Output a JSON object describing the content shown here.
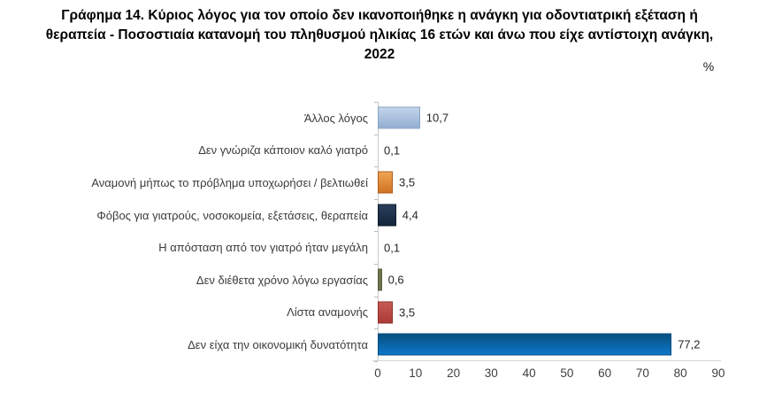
{
  "title_lines": [
    "Γράφημα 14. Κύριος λόγος για τον οποίο δεν ικανοποιήθηκε η ανάγκη για οδοντιατρική εξέταση ή",
    "θεραπεία - Ποσοστιαία κατανομή του πληθυσμού ηλικίας 16 ετών και άνω που είχε αντίστοιχη ανάγκη,",
    "2022"
  ],
  "unit_label": "%",
  "chart_data": {
    "type": "bar",
    "orientation": "horizontal",
    "title": "Γράφημα 14. Κύριος λόγος για τον οποίο δεν ικανοποιήθηκε η ανάγκη για οδοντιατρική εξέταση ή θεραπεία - Ποσοστιαία κατανομή του πληθυσμού ηλικίας 16 ετών και άνω που είχε αντίστοιχη ανάγκη, 2022",
    "unit": "%",
    "categories": [
      "Άλλος λόγος",
      "Δεν γνώριζα κάποιον καλό γιατρό",
      "Αναμονή μήπως το πρόβλημα υποχωρήσει / βελτιωθεί",
      "Φόβος για γιατρούς, νοσοκομεία, εξετάσεις, θεραπεία",
      "Η απόσταση από τον γιατρό ήταν μεγάλη",
      "Δεν διέθετα χρόνο λόγω εργασίας",
      "Λίστα αναμονής",
      "Δεν είχα την οικονομική δυνατότητα"
    ],
    "values": [
      10.7,
      0.1,
      3.5,
      4.4,
      0.1,
      0.6,
      3.5,
      77.2
    ],
    "value_labels": [
      "10,7",
      "0,1",
      "3,5",
      "4,4",
      "0,1",
      "0,6",
      "3,5",
      "77,2"
    ],
    "bar_colors": [
      {
        "fill_top": "#c3d4ea",
        "fill_bottom": "#93aed2",
        "border": "#89a4c4"
      },
      {
        "fill_top": null,
        "fill_bottom": null,
        "border": null
      },
      {
        "fill_top": "#f0a554",
        "fill_bottom": "#cf7322",
        "border": "#ad5d1d"
      },
      {
        "fill_top": "#2a3e5c",
        "fill_bottom": "#14243a",
        "border": "#0f1c2c"
      },
      {
        "fill_top": null,
        "fill_bottom": null,
        "border": null
      },
      {
        "fill_top": "#70744e",
        "fill_bottom": "#70744e",
        "border": "#5c6040"
      },
      {
        "fill_top": "#c75a54",
        "fill_bottom": "#ab3b38",
        "border": "#8e2f2c"
      },
      {
        "fill_top": "#07507f",
        "fill_bottom": "#0c77c9",
        "border": "#064d85"
      }
    ],
    "xlim": [
      0,
      90
    ],
    "xticks": [
      "0",
      "10",
      "20",
      "30",
      "40",
      "50",
      "60",
      "70",
      "80",
      "90"
    ],
    "grid": false,
    "legend": false
  }
}
